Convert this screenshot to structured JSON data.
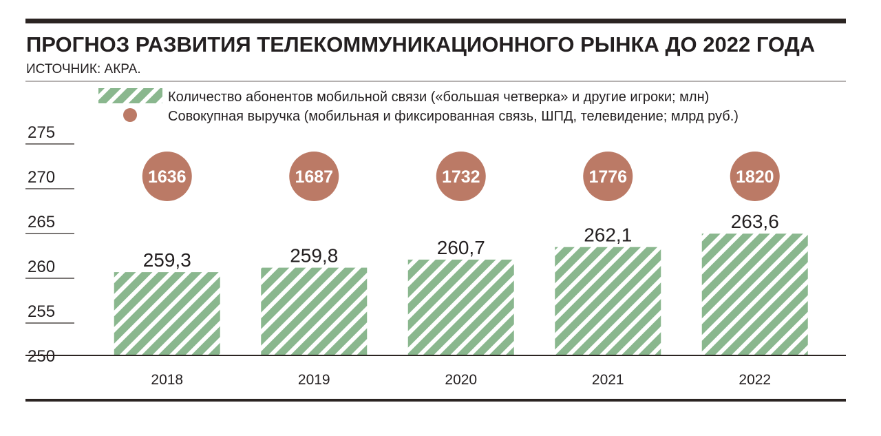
{
  "header": {
    "title": "ПРОГНОЗ РАЗВИТИЯ ТЕЛЕКОММУНИКАЦИОННОГО РЫНКА ДО 2022 ГОДА",
    "source": "ИСТОЧНИК: АКРА."
  },
  "colors": {
    "rule": "#2b2422",
    "bar_stripe": "#8ab78e",
    "bar_stripe_gap": "#ffffff",
    "bubble": "#bb7a66",
    "text": "#231f20"
  },
  "legend": {
    "position": "top",
    "items": [
      {
        "marker": "hatched-bar",
        "label": "Количество абонентов мобильной связи («большая четверка» и другие игроки; млн)"
      },
      {
        "marker": "circle",
        "label": "Совокупная выручка (мобильная и фиксированная связь, ШПД, телевидение; млрд руб.)"
      }
    ]
  },
  "chart_data": {
    "type": "bar",
    "title": "ПРОГНОЗ РАЗВИТИЯ ТЕЛЕКОММУНИКАЦИОННОГО РЫНКА ДО 2022 ГОДА",
    "xlabel": "",
    "ylabel": "",
    "categories": [
      "2018",
      "2019",
      "2020",
      "2021",
      "2022"
    ],
    "ylim": [
      250,
      275
    ],
    "yticks": [
      250,
      255,
      260,
      265,
      270,
      275
    ],
    "ytick_labels": [
      "250",
      "255",
      "260",
      "265",
      "270",
      "275"
    ],
    "grid": false,
    "series": [
      {
        "name": "Количество абонентов мобильной связи («большая четверка» и другие игроки; млн)",
        "type": "bar",
        "values": [
          259.3,
          259.8,
          260.7,
          262.1,
          263.6
        ],
        "labels": [
          "259,3",
          "259,8",
          "260,7",
          "262,1",
          "263,6"
        ]
      },
      {
        "name": "Совокупная выручка (мобильная и фиксированная связь, ШПД, телевидение; млрд руб.)",
        "type": "circle-annotation",
        "values": [
          1636,
          1687,
          1732,
          1776,
          1820
        ],
        "labels": [
          "1636",
          "1687",
          "1732",
          "1776",
          "1820"
        ]
      }
    ]
  }
}
